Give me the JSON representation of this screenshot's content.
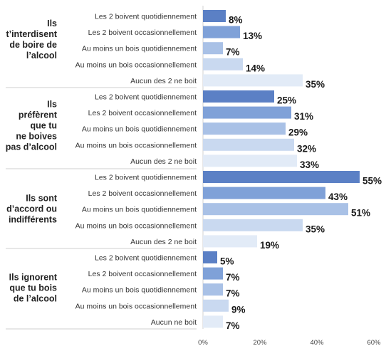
{
  "chart_data": {
    "type": "bar",
    "orientation": "horizontal",
    "title": "",
    "xlabel": "",
    "ylabel": "",
    "xlim": [
      0,
      60
    ],
    "x_ticks": [
      "0%",
      "20%",
      "40%",
      "60%"
    ],
    "grid": false,
    "shade_colors": [
      "#5b80c5",
      "#7fa1d8",
      "#a9c1e6",
      "#c9d9f0",
      "#e2ebf7"
    ],
    "groups": [
      {
        "label_lines": [
          "Ils",
          "t’interdisent",
          "de boire de",
          "l’alcool"
        ],
        "bars": [
          {
            "category": "Les 2 boivent quotidiennement",
            "value": 8,
            "label": "8%"
          },
          {
            "category": "Les 2 boivent occasionnellement",
            "value": 13,
            "label": "13%"
          },
          {
            "category": "Au moins un bois quotidiennement",
            "value": 7,
            "label": "7%"
          },
          {
            "category": "Au moins un bois occasionnellement",
            "value": 14,
            "label": "14%"
          },
          {
            "category": "Aucun des 2 ne boit",
            "value": 35,
            "label": "35%"
          }
        ]
      },
      {
        "label_lines": [
          "Ils",
          "préfèrent",
          "que tu",
          "ne boives",
          "pas d’alcool"
        ],
        "bars": [
          {
            "category": "Les 2 boivent quotidiennement",
            "value": 25,
            "label": "25%"
          },
          {
            "category": "Les 2 boivent occasionnellement",
            "value": 31,
            "label": "31%"
          },
          {
            "category": "Au moins un bois quotidiennement",
            "value": 29,
            "label": "29%"
          },
          {
            "category": "Au moins un bois occasionnellement",
            "value": 32,
            "label": "32%"
          },
          {
            "category": "Aucun des 2 ne boit",
            "value": 33,
            "label": "33%"
          }
        ]
      },
      {
        "label_lines": [
          "Ils sont",
          "d’accord ou",
          "indifférents"
        ],
        "bars": [
          {
            "category": "Les 2 boivent quotidiennement",
            "value": 55,
            "label": "55%"
          },
          {
            "category": "Les 2 boivent occasionnellement",
            "value": 43,
            "label": "43%"
          },
          {
            "category": "Au moins un bois quotidiennement",
            "value": 51,
            "label": "51%"
          },
          {
            "category": "Au moins un bois occasionnellement",
            "value": 35,
            "label": "35%"
          },
          {
            "category": "Aucun des 2 ne boit",
            "value": 19,
            "label": "19%"
          }
        ]
      },
      {
        "label_lines": [
          "Ils ignorent",
          "que tu bois",
          "de l’alcool"
        ],
        "bars": [
          {
            "category": "Les 2 boivent quotidiennement",
            "value": 5,
            "label": "5%"
          },
          {
            "category": "Les 2 boivent occasionnellement",
            "value": 7,
            "label": "7%"
          },
          {
            "category": "Au moins un bois quotidiennement",
            "value": 7,
            "label": "7%"
          },
          {
            "category": "Au moins un bois occasionnellement",
            "value": 9,
            "label": "9%"
          },
          {
            "category": "Aucun ne boit",
            "value": 7,
            "label": "7%"
          }
        ]
      }
    ]
  }
}
